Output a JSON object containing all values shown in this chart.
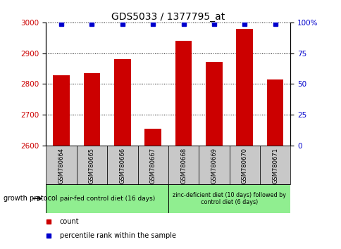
{
  "title": "GDS5033 / 1377795_at",
  "samples": [
    "GSM780664",
    "GSM780665",
    "GSM780666",
    "GSM780667",
    "GSM780668",
    "GSM780669",
    "GSM780670",
    "GSM780671"
  ],
  "counts": [
    2828,
    2835,
    2882,
    2655,
    2940,
    2872,
    2980,
    2815
  ],
  "percentiles": [
    99,
    99,
    99,
    99,
    99,
    99,
    99,
    99
  ],
  "ylim_left": [
    2600,
    3000
  ],
  "ylim_right": [
    0,
    100
  ],
  "yticks_left": [
    2600,
    2700,
    2800,
    2900,
    3000
  ],
  "yticks_right": [
    0,
    25,
    50,
    75,
    100
  ],
  "bar_color": "#cc0000",
  "dot_color": "#0000cc",
  "bar_width": 0.55,
  "group1_label": "pair-fed control diet (16 days)",
  "group2_label": "zinc-deficient diet (10 days) followed by\ncontrol diet (6 days)",
  "group1_color": "#90ee90",
  "group2_color": "#90ee90",
  "tick_label_color_left": "#cc0000",
  "tick_label_color_right": "#0000cc",
  "xlabel_area_color": "#c8c8c8",
  "protocol_label": "growth protocol",
  "legend_count_label": "count",
  "legend_pct_label": "percentile rank within the sample",
  "title_fontsize": 10,
  "tick_fontsize": 7.5
}
